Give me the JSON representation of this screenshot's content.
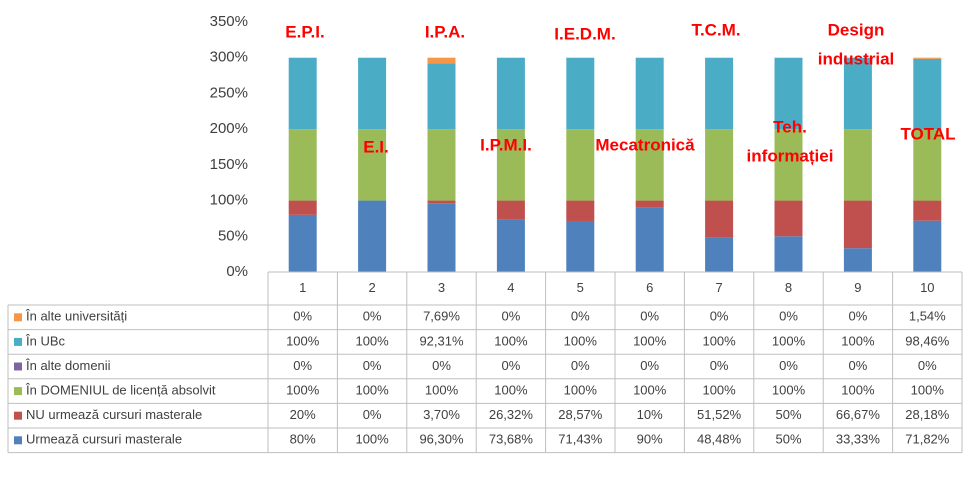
{
  "chart_data": {
    "type": "stacked_bar",
    "categories": [
      "1",
      "2",
      "3",
      "4",
      "5",
      "6",
      "7",
      "8",
      "9",
      "10"
    ],
    "series": [
      {
        "name": "Urmează cursuri masterale",
        "color": "#4f81bd",
        "values": [
          80,
          100,
          96.3,
          73.68,
          71.43,
          90,
          48.48,
          50,
          33.33,
          71.82
        ],
        "value_labels": [
          "80%",
          "100%",
          "96,30%",
          "73,68%",
          "71,43%",
          "90%",
          "48,48%",
          "50%",
          "33,33%",
          "71,82%"
        ]
      },
      {
        "name": "NU urmează cursuri masterale",
        "color": "#c0504d",
        "values": [
          20,
          0,
          3.7,
          26.32,
          28.57,
          10,
          51.52,
          50,
          66.67,
          28.18
        ],
        "value_labels": [
          "20%",
          "0%",
          "3,70%",
          "26,32%",
          "28,57%",
          "10%",
          "51,52%",
          "50%",
          "66,67%",
          "28,18%"
        ]
      },
      {
        "name": "În DOMENIUL de licență absolvit",
        "color": "#9bbb59",
        "values": [
          100,
          100,
          100,
          100,
          100,
          100,
          100,
          100,
          100,
          100
        ],
        "value_labels": [
          "100%",
          "100%",
          "100%",
          "100%",
          "100%",
          "100%",
          "100%",
          "100%",
          "100%",
          "100%"
        ]
      },
      {
        "name": "În alte domenii",
        "color": "#8064a2",
        "values": [
          0,
          0,
          0,
          0,
          0,
          0,
          0,
          0,
          0,
          0
        ],
        "value_labels": [
          "0%",
          "0%",
          "0%",
          "0%",
          "0%",
          "0%",
          "0%",
          "0%",
          "0%",
          "0%"
        ]
      },
      {
        "name": "În UBc",
        "color": "#4bacc6",
        "values": [
          100,
          100,
          92.31,
          100,
          100,
          100,
          100,
          100,
          100,
          98.46
        ],
        "value_labels": [
          "100%",
          "100%",
          "92,31%",
          "100%",
          "100%",
          "100%",
          "100%",
          "100%",
          "100%",
          "98,46%"
        ]
      },
      {
        "name": "În alte universități",
        "color": "#f79646",
        "values": [
          0,
          0,
          7.69,
          0,
          0,
          0,
          0,
          0,
          0,
          1.54
        ],
        "value_labels": [
          "0%",
          "0%",
          "7,69%",
          "0%",
          "0%",
          "0%",
          "0%",
          "0%",
          "0%",
          "1,54%"
        ]
      }
    ],
    "ylim": [
      0,
      350
    ],
    "yticks": [
      {
        "value": 0,
        "label": "0%"
      },
      {
        "value": 50,
        "label": "50%"
      },
      {
        "value": 100,
        "label": "100%"
      },
      {
        "value": 150,
        "label": "150%"
      },
      {
        "value": 200,
        "label": "200%"
      },
      {
        "value": 250,
        "label": "250%"
      },
      {
        "value": 300,
        "label": "300%"
      },
      {
        "value": 350,
        "label": "350%"
      }
    ],
    "grid": false,
    "annotations": [
      [
        "E.P.I."
      ],
      [
        "E.I."
      ],
      [
        "I.P.A."
      ],
      [
        "I.P.M.I."
      ],
      [
        "I.E.D.M."
      ],
      [
        "Mecatronică"
      ],
      [
        "T.C.M."
      ],
      [
        "Teh.",
        "informației"
      ],
      [
        "Design",
        "industrial"
      ],
      [
        "TOTAL"
      ]
    ]
  }
}
